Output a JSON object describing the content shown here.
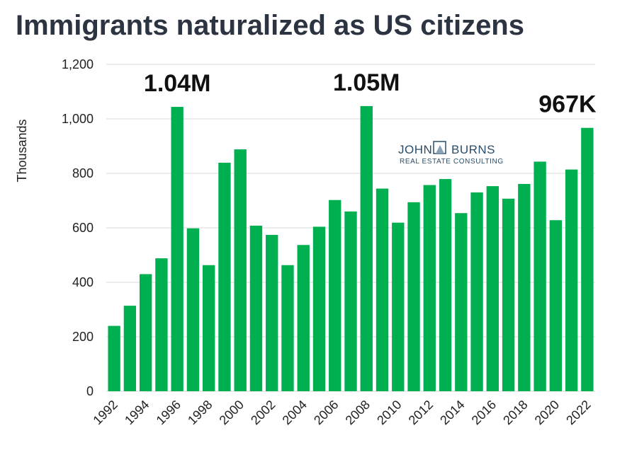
{
  "title": "Immigrants naturalized as US citizens",
  "logo": {
    "line1_left": "JOHN",
    "line1_right": "BURNS",
    "line2": "REAL ESTATE CONSULTING"
  },
  "colors": {
    "bar": "#00b050",
    "grid": "#d9d9d9",
    "title": "#2b3440"
  },
  "chart_data": {
    "type": "bar",
    "title": "Immigrants naturalized as US citizens",
    "xlabel": "",
    "ylabel": "Thousands",
    "ylim": [
      0,
      1200
    ],
    "yticks": [
      0,
      200,
      400,
      600,
      800,
      1000,
      1200
    ],
    "ytick_labels": [
      "0",
      "200",
      "400",
      "600",
      "800",
      "1,000",
      "1,200"
    ],
    "grid": true,
    "categories": [
      "1992",
      "1993",
      "1994",
      "1995",
      "1996",
      "1997",
      "1998",
      "1999",
      "2000",
      "2001",
      "2002",
      "2003",
      "2004",
      "2005",
      "2006",
      "2007",
      "2008",
      "2009",
      "2010",
      "2011",
      "2012",
      "2013",
      "2014",
      "2015",
      "2016",
      "2017",
      "2018",
      "2019",
      "2020",
      "2021",
      "2022"
    ],
    "xtick_labels": [
      "1992",
      "1994",
      "1996",
      "1998",
      "2000",
      "2002",
      "2004",
      "2006",
      "2008",
      "2010",
      "2012",
      "2014",
      "2016",
      "2018",
      "2020",
      "2022"
    ],
    "values": [
      240,
      314,
      430,
      488,
      1044,
      598,
      463,
      839,
      888,
      608,
      574,
      463,
      537,
      604,
      702,
      660,
      1047,
      744,
      619,
      694,
      757,
      779,
      654,
      730,
      753,
      707,
      761,
      843,
      628,
      814,
      967
    ],
    "annotations": [
      {
        "category": "1996",
        "text": "1.04M"
      },
      {
        "category": "2008",
        "text": "1.05M"
      },
      {
        "category": "2022",
        "text": "967K"
      }
    ]
  }
}
